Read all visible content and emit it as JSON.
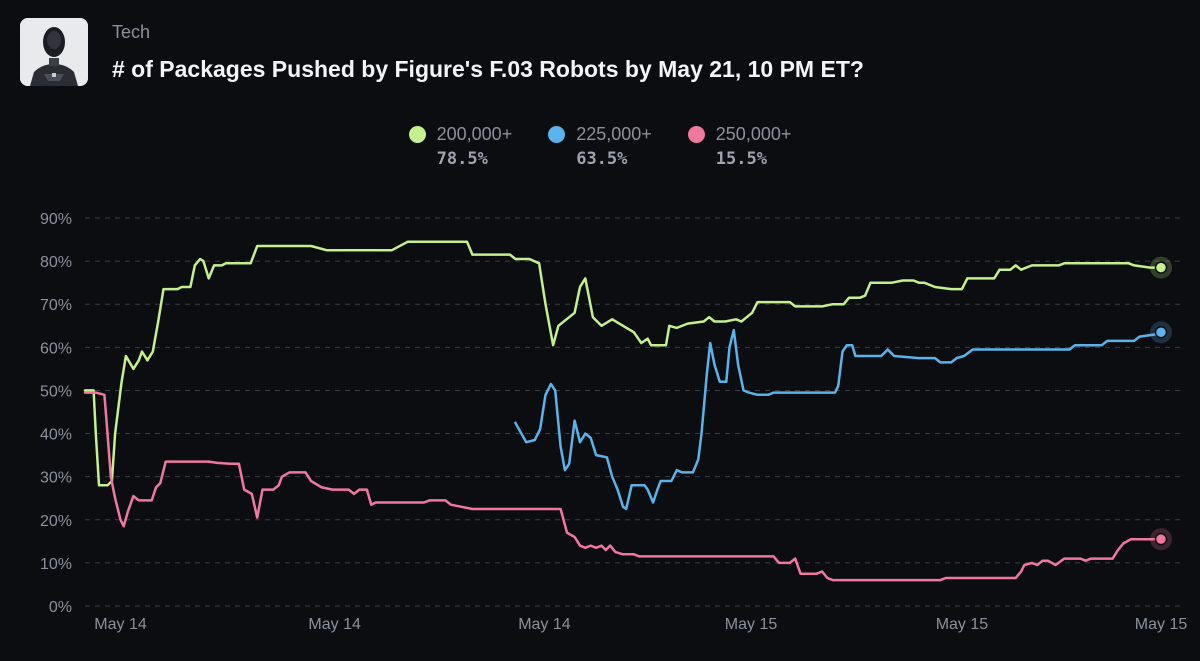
{
  "header": {
    "category": "Tech",
    "title": "# of Packages Pushed by Figure's F.03 Robots by May 21, 10 PM ET?",
    "avatar_icon": "robot-avatar-icon"
  },
  "colors": {
    "background": "#0c0d10",
    "grid": "#3a3d44",
    "tick_text": "#8b909a"
  },
  "chart_data": {
    "type": "line",
    "title": "",
    "xlabel": "",
    "ylabel": "",
    "ylim": [
      0,
      90
    ],
    "y_ticks": [
      0,
      10,
      20,
      30,
      40,
      50,
      60,
      70,
      80,
      90
    ],
    "y_tick_labels": [
      "0%",
      "10%",
      "20%",
      "30%",
      "40%",
      "50%",
      "60%",
      "70%",
      "80%",
      "90%"
    ],
    "x_range": [
      0,
      100
    ],
    "x_ticks": [
      {
        "x": 3.3,
        "label": "May 14"
      },
      {
        "x": 23.2,
        "label": "May 14"
      },
      {
        "x": 42.7,
        "label": "May 14"
      },
      {
        "x": 61.9,
        "label": "May 15"
      },
      {
        "x": 81.5,
        "label": "May 15"
      },
      {
        "x": 100,
        "label": "May 15"
      }
    ],
    "grid": "horizontal dashed",
    "legend_position": "top-center",
    "series": [
      {
        "name": "200,000+",
        "color": "#c5f08f",
        "current": "78.5%",
        "points": [
          [
            0,
            50
          ],
          [
            0.8,
            50
          ],
          [
            1,
            40
          ],
          [
            1.3,
            28
          ],
          [
            2.1,
            28
          ],
          [
            2.5,
            29
          ],
          [
            2.8,
            40
          ],
          [
            3.4,
            52
          ],
          [
            3.8,
            58
          ],
          [
            4.5,
            55
          ],
          [
            5,
            57
          ],
          [
            5.3,
            59
          ],
          [
            5.8,
            57
          ],
          [
            6.3,
            59
          ],
          [
            6.8,
            66
          ],
          [
            7.3,
            73.5
          ],
          [
            8.6,
            73.5
          ],
          [
            9,
            74
          ],
          [
            9.8,
            74
          ],
          [
            10.2,
            79
          ],
          [
            10.7,
            80.5
          ],
          [
            11,
            80
          ],
          [
            11.5,
            76
          ],
          [
            12,
            79
          ],
          [
            12.7,
            79
          ],
          [
            13.1,
            79.5
          ],
          [
            15.4,
            79.5
          ],
          [
            16,
            83.5
          ],
          [
            21,
            83.5
          ],
          [
            22.5,
            82.5
          ],
          [
            28.5,
            82.5
          ],
          [
            30,
            84.5
          ],
          [
            35.5,
            84.5
          ],
          [
            36,
            81.5
          ],
          [
            39.5,
            81.5
          ],
          [
            40,
            80.5
          ],
          [
            41.3,
            80.5
          ],
          [
            42.2,
            79.5
          ],
          [
            42.8,
            70
          ],
          [
            43.5,
            60.5
          ],
          [
            44,
            65
          ],
          [
            45,
            67
          ],
          [
            45.5,
            68
          ],
          [
            46,
            74
          ],
          [
            46.5,
            76
          ],
          [
            47.2,
            67
          ],
          [
            48,
            65
          ],
          [
            49,
            66.5
          ],
          [
            50,
            65
          ],
          [
            51,
            63.5
          ],
          [
            51.7,
            61
          ],
          [
            52.3,
            62
          ],
          [
            52.6,
            60.5
          ],
          [
            54,
            60.5
          ],
          [
            54.3,
            65
          ],
          [
            55,
            64.5
          ],
          [
            56,
            65.5
          ],
          [
            57.5,
            66
          ],
          [
            58,
            67
          ],
          [
            58.5,
            66
          ],
          [
            59.5,
            66
          ],
          [
            60.5,
            66.5
          ],
          [
            61,
            66
          ],
          [
            61.5,
            67
          ],
          [
            62,
            68
          ],
          [
            62.5,
            70.5
          ],
          [
            63,
            70.5
          ],
          [
            65.5,
            70.5
          ],
          [
            66,
            69.5
          ],
          [
            68.5,
            69.5
          ],
          [
            69.5,
            70
          ],
          [
            70.5,
            70
          ],
          [
            71,
            71.5
          ],
          [
            72,
            71.5
          ],
          [
            72.5,
            72
          ],
          [
            73,
            75
          ],
          [
            75,
            75
          ],
          [
            76,
            75.5
          ],
          [
            77,
            75.5
          ],
          [
            77.5,
            75
          ],
          [
            78,
            75
          ],
          [
            79,
            74
          ],
          [
            80.5,
            73.5
          ],
          [
            81.5,
            73.5
          ],
          [
            82,
            76
          ],
          [
            84.5,
            76
          ],
          [
            85,
            78
          ],
          [
            86,
            78
          ],
          [
            86.5,
            79
          ],
          [
            87,
            78
          ],
          [
            88,
            79
          ],
          [
            90.5,
            79
          ],
          [
            91,
            79.5
          ],
          [
            97,
            79.5
          ],
          [
            97.5,
            79
          ],
          [
            99,
            78.5
          ],
          [
            100,
            78.5
          ]
        ]
      },
      {
        "name": "225,000+",
        "color": "#5bb3ec",
        "current": "63.5%",
        "points": [
          [
            40,
            42.5
          ],
          [
            41,
            38
          ],
          [
            41.8,
            38.5
          ],
          [
            42.3,
            41
          ],
          [
            42.8,
            49
          ],
          [
            43.3,
            51.5
          ],
          [
            43.7,
            50
          ],
          [
            44.2,
            37
          ],
          [
            44.6,
            31.5
          ],
          [
            45,
            33
          ],
          [
            45.5,
            43
          ],
          [
            46,
            38
          ],
          [
            46.5,
            40
          ],
          [
            47,
            39
          ],
          [
            47.5,
            35
          ],
          [
            48.5,
            34.5
          ],
          [
            49,
            30
          ],
          [
            49.5,
            27
          ],
          [
            50,
            23
          ],
          [
            50.3,
            22.5
          ],
          [
            50.8,
            28
          ],
          [
            52,
            28
          ],
          [
            52.3,
            27
          ],
          [
            52.8,
            24
          ],
          [
            53.2,
            27
          ],
          [
            53.5,
            29
          ],
          [
            54.5,
            29
          ],
          [
            55,
            31.5
          ],
          [
            55.5,
            31
          ],
          [
            56.5,
            31
          ],
          [
            57,
            34
          ],
          [
            57.3,
            40
          ],
          [
            57.8,
            54
          ],
          [
            58.1,
            61
          ],
          [
            58.5,
            56
          ],
          [
            59,
            52
          ],
          [
            59.6,
            52
          ],
          [
            59.9,
            60
          ],
          [
            60.3,
            64
          ],
          [
            60.7,
            56
          ],
          [
            61.2,
            50
          ],
          [
            61.7,
            49.5
          ],
          [
            62.5,
            49
          ],
          [
            63.5,
            49
          ],
          [
            64,
            49.5
          ],
          [
            69.7,
            49.5
          ],
          [
            70,
            51
          ],
          [
            70.4,
            59
          ],
          [
            70.8,
            60.5
          ],
          [
            71.3,
            60.5
          ],
          [
            71.6,
            58
          ],
          [
            73,
            58
          ],
          [
            74,
            58
          ],
          [
            74.6,
            59.5
          ],
          [
            75.2,
            58
          ],
          [
            77.5,
            57.5
          ],
          [
            79,
            57.5
          ],
          [
            79.5,
            56.5
          ],
          [
            80.5,
            56.5
          ],
          [
            81,
            57.5
          ],
          [
            81.7,
            58
          ],
          [
            82.5,
            59.5
          ],
          [
            91.5,
            59.5
          ],
          [
            92,
            60.5
          ],
          [
            94.5,
            60.5
          ],
          [
            95,
            61.5
          ],
          [
            97.5,
            61.5
          ],
          [
            98,
            62.5
          ],
          [
            99.5,
            63
          ],
          [
            100,
            63.5
          ]
        ]
      },
      {
        "name": "250,000+",
        "color": "#f0789f",
        "current": "15.5%",
        "points": [
          [
            0,
            49.5
          ],
          [
            1,
            49.5
          ],
          [
            1.8,
            49
          ],
          [
            2,
            43
          ],
          [
            2.4,
            30
          ],
          [
            2.8,
            25
          ],
          [
            3.3,
            20
          ],
          [
            3.6,
            18.5
          ],
          [
            4,
            22
          ],
          [
            4.5,
            25.5
          ],
          [
            5,
            24.5
          ],
          [
            6.2,
            24.5
          ],
          [
            6.6,
            27.5
          ],
          [
            7,
            28.5
          ],
          [
            7.5,
            33.5
          ],
          [
            11.5,
            33.5
          ],
          [
            12.3,
            33.2
          ],
          [
            13.5,
            33
          ],
          [
            14.3,
            33
          ],
          [
            14.8,
            27
          ],
          [
            15.5,
            26
          ],
          [
            16,
            20.5
          ],
          [
            16.5,
            27
          ],
          [
            17.5,
            27
          ],
          [
            18,
            28
          ],
          [
            18.3,
            30
          ],
          [
            19,
            31
          ],
          [
            20.5,
            31
          ],
          [
            21,
            29
          ],
          [
            22,
            27.5
          ],
          [
            23,
            27
          ],
          [
            24.5,
            27
          ],
          [
            25,
            26
          ],
          [
            25.5,
            27
          ],
          [
            26.2,
            27
          ],
          [
            26.6,
            23.5
          ],
          [
            27,
            24
          ],
          [
            31.5,
            24
          ],
          [
            32,
            24.5
          ],
          [
            33.5,
            24.5
          ],
          [
            34,
            23.5
          ],
          [
            35,
            23
          ],
          [
            36,
            22.5
          ],
          [
            44.2,
            22.5
          ],
          [
            44.8,
            17
          ],
          [
            45.5,
            16
          ],
          [
            46,
            14
          ],
          [
            46.5,
            13.5
          ],
          [
            47,
            14
          ],
          [
            47.5,
            13.5
          ],
          [
            48,
            14
          ],
          [
            48.4,
            13
          ],
          [
            48.8,
            14
          ],
          [
            49.3,
            12.5
          ],
          [
            50,
            12
          ],
          [
            51,
            12
          ],
          [
            51.5,
            11.5
          ],
          [
            61,
            11.5
          ],
          [
            64,
            11.5
          ],
          [
            64.5,
            10
          ],
          [
            65.5,
            10
          ],
          [
            66,
            11
          ],
          [
            66.5,
            7.5
          ],
          [
            68,
            7.5
          ],
          [
            68.5,
            8
          ],
          [
            69,
            6.5
          ],
          [
            69.5,
            6
          ],
          [
            79.5,
            6
          ],
          [
            80,
            6.5
          ],
          [
            86.5,
            6.5
          ],
          [
            87,
            8
          ],
          [
            87.3,
            9.5
          ],
          [
            88,
            10
          ],
          [
            88.5,
            9.5
          ],
          [
            89,
            10.5
          ],
          [
            89.5,
            10.5
          ],
          [
            90.2,
            9.5
          ],
          [
            91,
            11
          ],
          [
            92.5,
            11
          ],
          [
            93,
            10.5
          ],
          [
            93.5,
            11
          ],
          [
            95.5,
            11
          ],
          [
            96,
            13
          ],
          [
            96.5,
            14.5
          ],
          [
            97.2,
            15.5
          ],
          [
            100,
            15.5
          ]
        ]
      }
    ]
  }
}
